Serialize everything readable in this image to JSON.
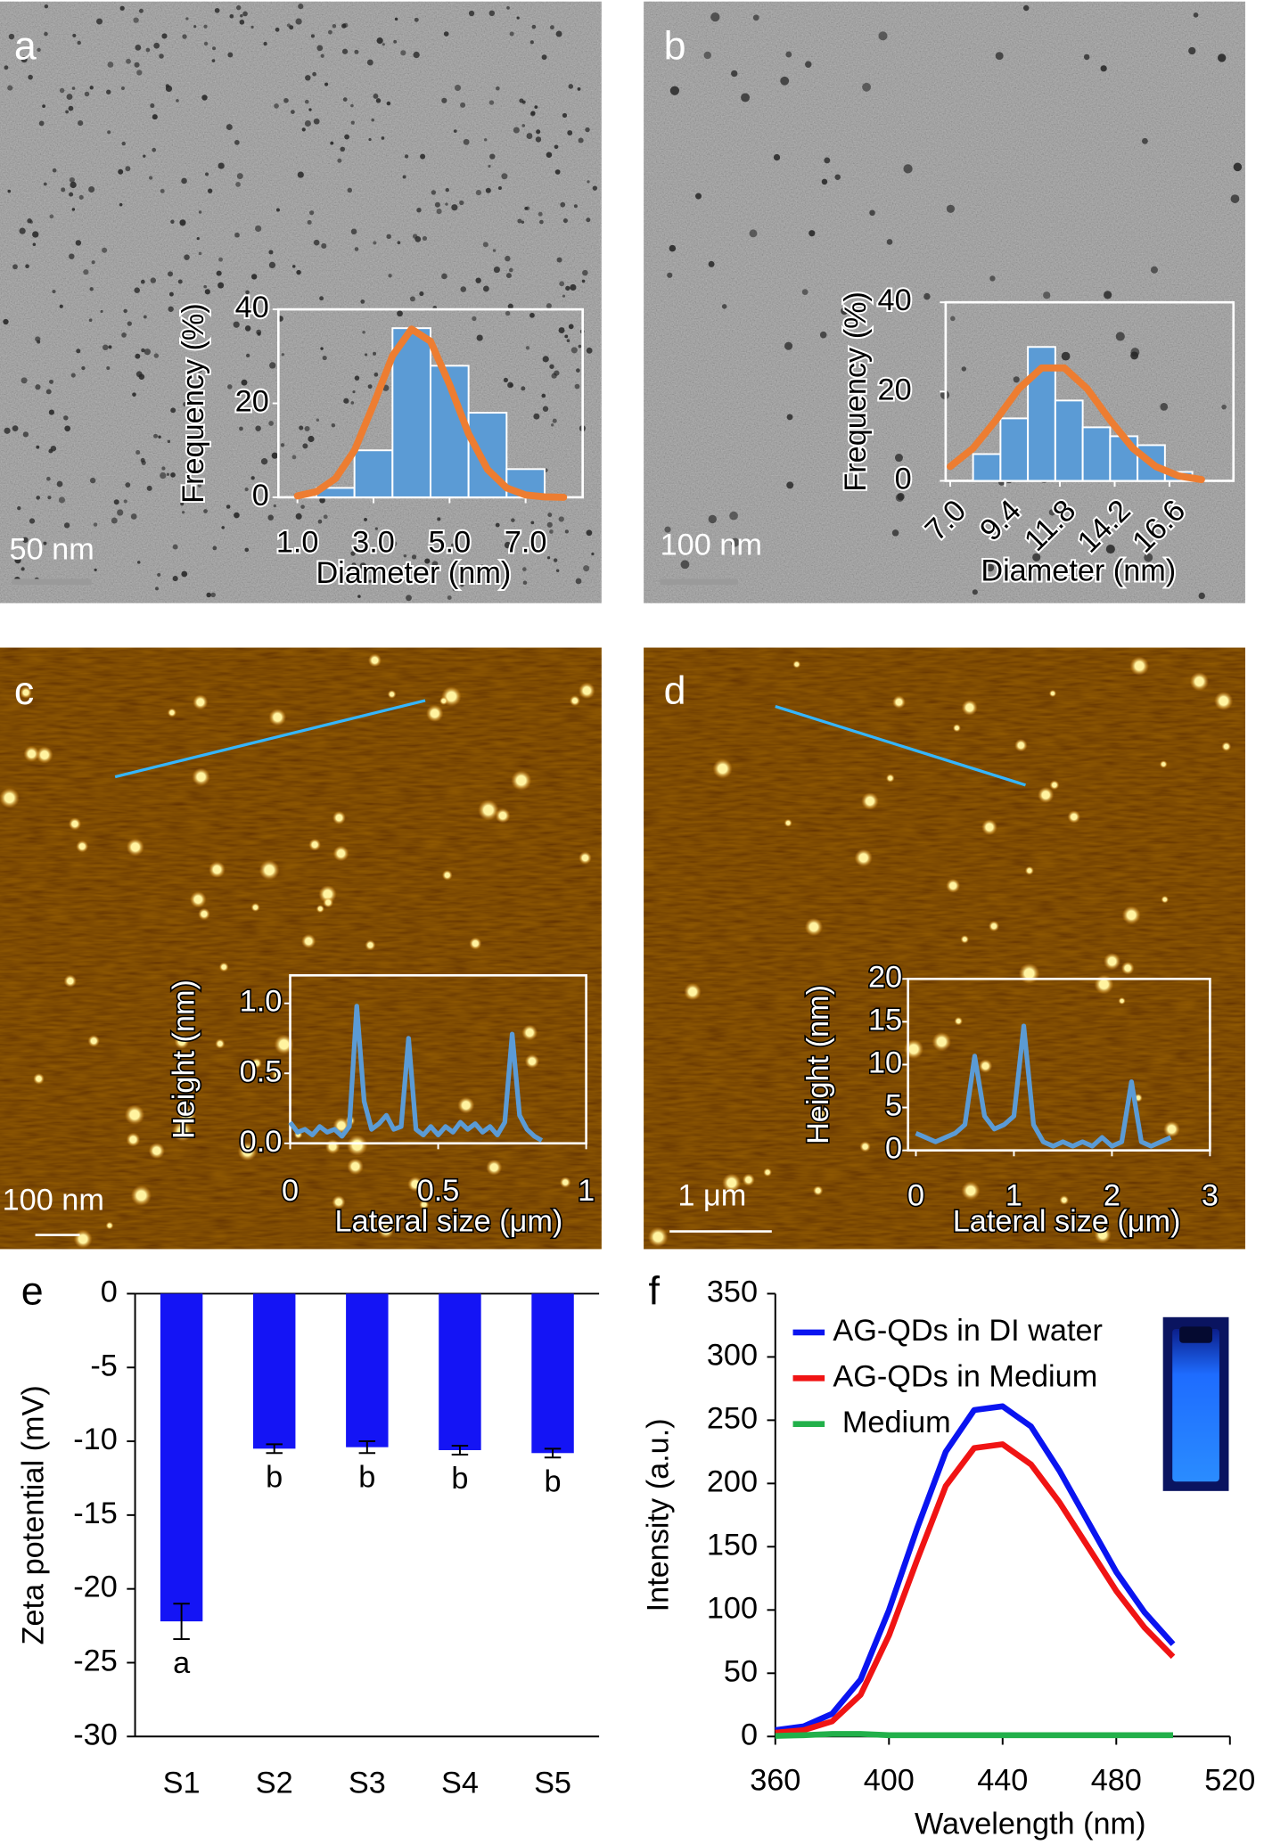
{
  "chart_data": [
    {
      "type": "histogram",
      "label": "a",
      "scale_bar": "50 nm",
      "xlabel": "Diameter (nm)",
      "ylabel": "Frequency (%)",
      "bins": [
        1.5,
        2.5,
        3.5,
        4.5,
        5.5,
        6.5,
        7.5
      ],
      "counts": [
        2,
        10,
        36,
        28,
        18,
        6
      ],
      "color": "#5b9bd5",
      "fit": {
        "color": "#ed7d31",
        "x": [
          1.0,
          1.5,
          2.0,
          2.5,
          3.0,
          3.5,
          4.0,
          4.5,
          5.0,
          5.5,
          6.0,
          6.5,
          7.0,
          7.5,
          8.0
        ],
        "values": [
          0.3,
          1.2,
          4.0,
          10.0,
          19.7,
          30.1,
          35.8,
          33.2,
          24.0,
          13.5,
          5.9,
          2.0,
          0.5,
          0.1,
          0
        ]
      },
      "xlim": [
        0.5,
        8.5
      ],
      "ylim": [
        0,
        40
      ],
      "xticks": [
        {
          "value": 1,
          "label": "1.0"
        },
        {
          "value": 3,
          "label": "3.0"
        },
        {
          "value": 5,
          "label": "5.0"
        },
        {
          "value": 7,
          "label": "7.0"
        }
      ],
      "yticks": [
        0,
        20,
        40
      ]
    },
    {
      "type": "histogram",
      "label": "b",
      "scale_bar": "100 nm",
      "xlabel": "Diameter (nm)",
      "ylabel": "Frequency (%)",
      "bins": [
        8.0,
        9.2,
        10.4,
        11.6,
        12.8,
        14.0,
        15.2,
        16.4,
        17.6
      ],
      "counts": [
        6,
        14,
        30,
        18,
        12,
        10,
        8,
        2
      ],
      "color": "#5b9bd5",
      "fit": {
        "color": "#ed7d31",
        "x": [
          7,
          8,
          9,
          10,
          11,
          12,
          13,
          14,
          15,
          16,
          17,
          18
        ],
        "values": [
          3.2,
          7.3,
          13.6,
          20.6,
          25.3,
          25.3,
          20.6,
          13.6,
          7.3,
          3.2,
          1.1,
          0.3
        ]
      },
      "xlim": [
        6.8,
        19.4
      ],
      "ylim": [
        0,
        40
      ],
      "xticks": [
        {
          "value": 7,
          "label": "7.0"
        },
        {
          "value": 9.4,
          "label": "9.4"
        },
        {
          "value": 11.8,
          "label": "11.8"
        },
        {
          "value": 14.2,
          "label": "14.2"
        },
        {
          "value": 16.6,
          "label": "16.6"
        }
      ],
      "yticks": [
        0,
        20,
        40
      ]
    },
    {
      "type": "line",
      "label": "c",
      "scale_bar": "100 nm",
      "xlabel": "Lateral size (μm)",
      "ylabel": "Height (nm)",
      "x": [
        0,
        0.025,
        0.05,
        0.075,
        0.1,
        0.125,
        0.15,
        0.175,
        0.2,
        0.225,
        0.25,
        0.275,
        0.3,
        0.325,
        0.35,
        0.375,
        0.4,
        0.425,
        0.45,
        0.475,
        0.5,
        0.525,
        0.55,
        0.575,
        0.6,
        0.625,
        0.65,
        0.675,
        0.7,
        0.725,
        0.75,
        0.775,
        0.8,
        0.825,
        0.85
      ],
      "values": [
        0.15,
        0.08,
        0.1,
        0.06,
        0.12,
        0.08,
        0.1,
        0.05,
        0.12,
        0.98,
        0.3,
        0.1,
        0.14,
        0.2,
        0.1,
        0.12,
        0.75,
        0.1,
        0.06,
        0.12,
        0.06,
        0.12,
        0.08,
        0.15,
        0.1,
        0.14,
        0.08,
        0.12,
        0.06,
        0.15,
        0.78,
        0.2,
        0.1,
        0.05,
        0.02
      ],
      "color": "#5b9bd5",
      "xlim": [
        0,
        1
      ],
      "ylim": [
        0,
        1.2
      ],
      "xticks": [
        0,
        0.5,
        1
      ],
      "yticks": [
        {
          "value": 0,
          "label": "0.0"
        },
        {
          "value": 0.5,
          "label": "0.5"
        },
        {
          "value": 1,
          "label": "1.0"
        }
      ]
    },
    {
      "type": "line",
      "label": "d",
      "scale_bar": "1 μm",
      "xlabel": "Lateral size (μm)",
      "ylabel": "Height (nm)",
      "x": [
        0,
        0.1,
        0.2,
        0.3,
        0.4,
        0.5,
        0.6,
        0.7,
        0.8,
        0.9,
        1.0,
        1.1,
        1.2,
        1.3,
        1.4,
        1.5,
        1.6,
        1.7,
        1.8,
        1.9,
        2.0,
        2.1,
        2.2,
        2.3,
        2.4,
        2.5,
        2.6
      ],
      "values": [
        2,
        1.5,
        1,
        1.5,
        2,
        3,
        11,
        4,
        2.5,
        3,
        4,
        14.5,
        3,
        1,
        0.5,
        1,
        0.5,
        1,
        0.5,
        1.5,
        0.5,
        1,
        8,
        1,
        0.5,
        1,
        1.5
      ],
      "color": "#5b9bd5",
      "xlim": [
        -0.08,
        3
      ],
      "ylim": [
        0,
        20
      ],
      "xticks": [
        0,
        1,
        2,
        3
      ],
      "yticks": [
        0,
        5,
        10,
        15,
        20
      ]
    },
    {
      "type": "bar",
      "label": "e",
      "ylabel": "Zeta potential (mV)",
      "categories": [
        "S1",
        "S2",
        "S3",
        "S4",
        "S5"
      ],
      "values": [
        -22.2,
        -10.5,
        -10.4,
        -10.6,
        -10.8
      ],
      "errors": [
        1.2,
        0.3,
        0.4,
        0.3,
        0.3
      ],
      "annotations": [
        "a",
        "b",
        "b",
        "b",
        "b"
      ],
      "color": "#1414f5",
      "ylim": [
        -30,
        0
      ],
      "yticks": [
        0,
        -5,
        -10,
        -15,
        -20,
        -25,
        -30
      ]
    },
    {
      "type": "line",
      "label": "f",
      "xlabel": "Wavelength (nm)",
      "ylabel": "Intensity (a.u.)",
      "x": [
        360,
        370,
        380,
        390,
        400,
        410,
        420,
        430,
        440,
        450,
        460,
        470,
        480,
        490,
        500
      ],
      "series": [
        {
          "name": "AG-QDs in DI water",
          "color": "#0a14f0",
          "values": [
            5,
            8,
            18,
            45,
            100,
            165,
            225,
            258,
            261,
            245,
            210,
            170,
            130,
            98,
            73
          ]
        },
        {
          "name": "AG-QDs in Medium",
          "color": "#f01414",
          "values": [
            3,
            5,
            12,
            33,
            80,
            140,
            198,
            228,
            231,
            215,
            185,
            150,
            115,
            86,
            63
          ]
        },
        {
          "name": "Medium",
          "color": "#22b04a",
          "values": [
            0.5,
            1,
            2,
            2,
            1,
            1,
            1,
            1,
            1,
            1,
            1,
            1,
            1,
            1,
            1
          ]
        }
      ],
      "xlim": [
        360,
        520
      ],
      "ylim": [
        0,
        350
      ],
      "xticks": [
        360,
        400,
        440,
        480,
        520
      ],
      "yticks": [
        0,
        50,
        100,
        150,
        200,
        250,
        300,
        350
      ],
      "legend": "upper left"
    }
  ]
}
